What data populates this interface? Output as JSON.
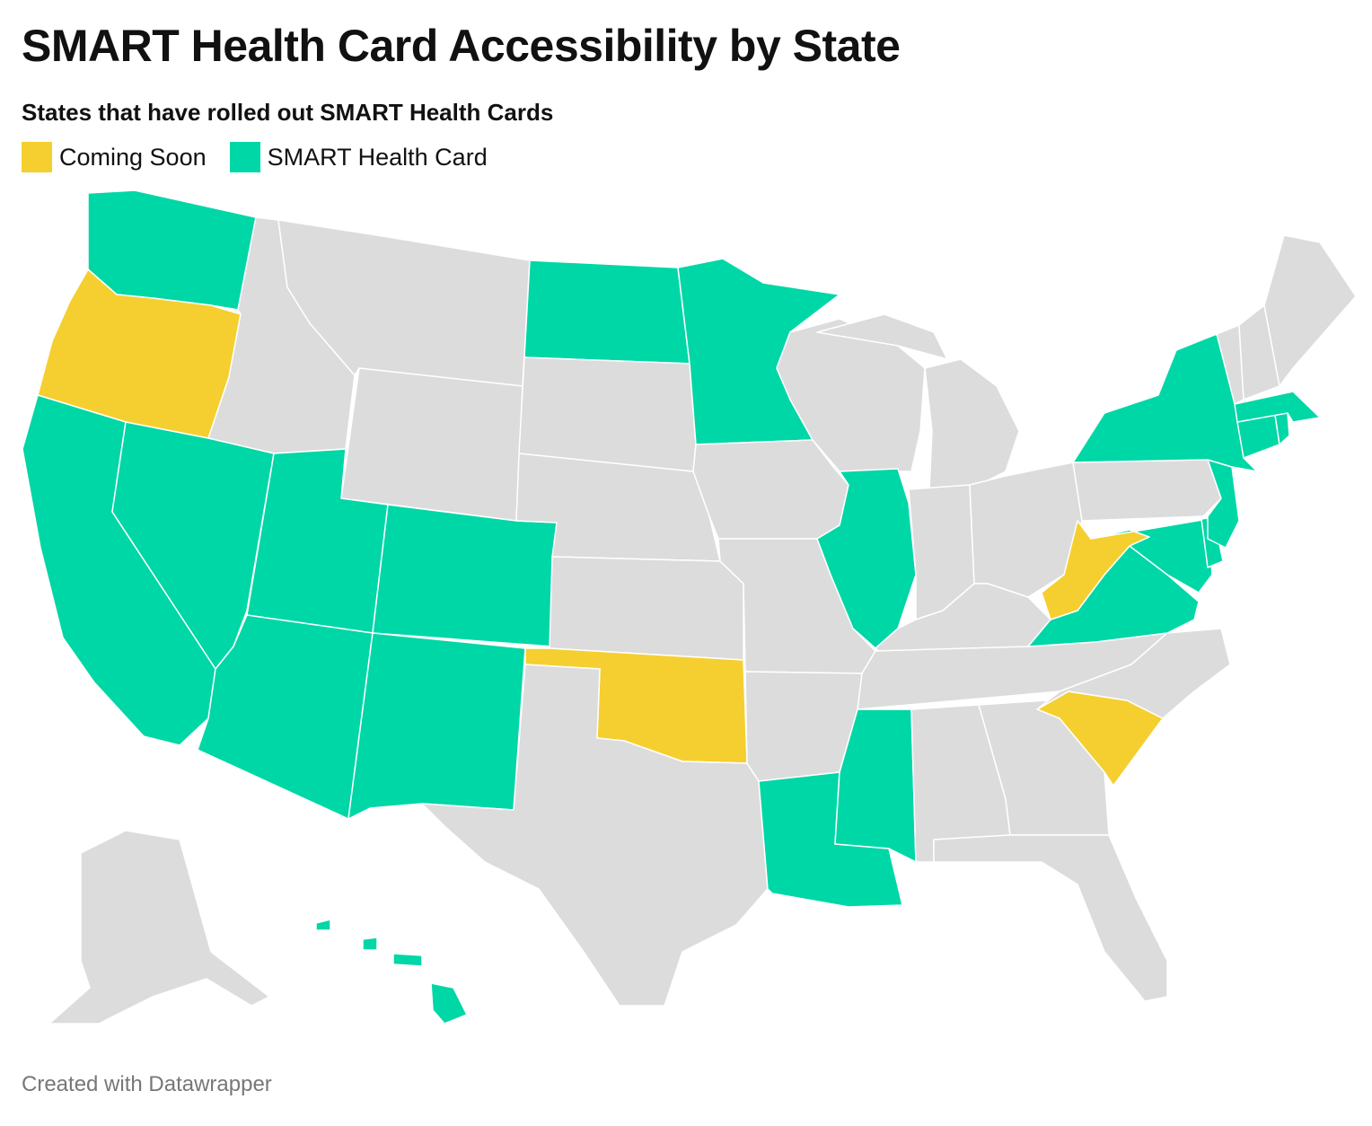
{
  "header": {
    "title": "SMART Health Card Accessibility by State",
    "subtitle": "States that have rolled out SMART Health Cards"
  },
  "legend": {
    "items": [
      {
        "label": "Coming Soon",
        "color": "#f5cf2f"
      },
      {
        "label": "SMART Health Card",
        "color": "#00d7a6"
      }
    ]
  },
  "colors": {
    "default": "#dcdcdc",
    "coming_soon": "#f5cf2f",
    "smart": "#00d7a6"
  },
  "map_data": {
    "smart_health_card": [
      "WA",
      "CA",
      "NV",
      "UT",
      "CO",
      "AZ",
      "NM",
      "ND",
      "MN",
      "IL",
      "LA",
      "MS",
      "NY",
      "NJ",
      "DE",
      "MD",
      "VA",
      "CT",
      "RI",
      "MA",
      "HI"
    ],
    "coming_soon": [
      "OR",
      "OK",
      "WV",
      "SC"
    ]
  },
  "footer": {
    "credit": "Created with Datawrapper"
  }
}
